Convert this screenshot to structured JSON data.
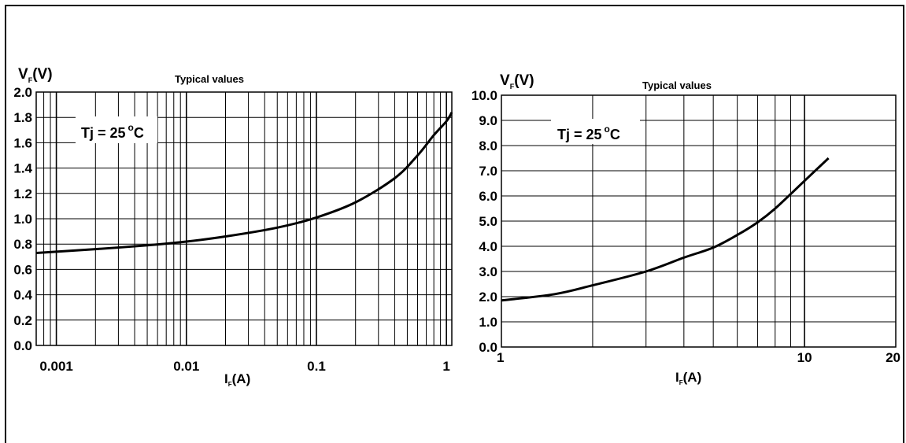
{
  "chart_data": [
    {
      "type": "line",
      "title": "Typical values",
      "ylabel_main": "V",
      "ylabel_sub": "F",
      "ylabel_unit": "(V)",
      "xlabel_main": "I",
      "xlabel_sub": "F",
      "xlabel_unit": "(A)",
      "annotation": "Tj = 25°C",
      "annotation_parts": {
        "prefix": "Tj = 25",
        "degree": "o",
        "unit": "C"
      },
      "xscale": "log",
      "xlim": [
        0.0007,
        1.1
      ],
      "ylim": [
        0,
        2
      ],
      "x_tick_labels": [
        "0.001",
        "0.01",
        "0.1",
        "1"
      ],
      "x_tick_values": [
        0.001,
        0.01,
        0.1,
        1
      ],
      "y_tick_labels": [
        "0.0",
        "0.2",
        "0.4",
        "0.6",
        "0.8",
        "1.0",
        "1.2",
        "1.4",
        "1.6",
        "1.8",
        "2.0"
      ],
      "y_tick_values": [
        0,
        0.2,
        0.4,
        0.6,
        0.8,
        1.0,
        1.2,
        1.4,
        1.6,
        1.8,
        2.0
      ],
      "grid": true,
      "series": [
        {
          "x": [
            0.0007,
            0.001,
            0.002,
            0.005,
            0.01,
            0.02,
            0.05,
            0.1,
            0.2,
            0.4,
            0.6,
            0.8,
            1.0,
            1.1
          ],
          "y": [
            0.73,
            0.74,
            0.76,
            0.79,
            0.82,
            0.86,
            0.93,
            1.01,
            1.13,
            1.32,
            1.5,
            1.66,
            1.77,
            1.84
          ]
        }
      ]
    },
    {
      "type": "line",
      "title": "Typical values",
      "ylabel_main": "V",
      "ylabel_sub": "F",
      "ylabel_unit": "(V)",
      "xlabel_main": "I",
      "xlabel_sub": "F",
      "xlabel_unit": "(A)",
      "annotation": "Tj = 25°C",
      "annotation_parts": {
        "prefix": "Tj = 25",
        "degree": "o",
        "unit": "C"
      },
      "xscale": "log",
      "xlim": [
        1,
        20
      ],
      "ylim": [
        0,
        10
      ],
      "x_tick_labels": [
        "1",
        "10",
        "20"
      ],
      "x_tick_values": [
        1,
        10,
        20
      ],
      "y_tick_labels": [
        "0.0",
        "1.0",
        "2.0",
        "3.0",
        "4.0",
        "5.0",
        "6.0",
        "7.0",
        "8.0",
        "9.0",
        "10.0"
      ],
      "y_tick_values": [
        0,
        1,
        2,
        3,
        4,
        5,
        6,
        7,
        8,
        9,
        10
      ],
      "grid": true,
      "series": [
        {
          "x": [
            1,
            1.5,
            2,
            3,
            4,
            5,
            6,
            7,
            8,
            10,
            12
          ],
          "y": [
            1.85,
            2.1,
            2.45,
            3.0,
            3.55,
            3.95,
            4.45,
            4.95,
            5.5,
            6.6,
            7.5
          ]
        }
      ]
    }
  ]
}
